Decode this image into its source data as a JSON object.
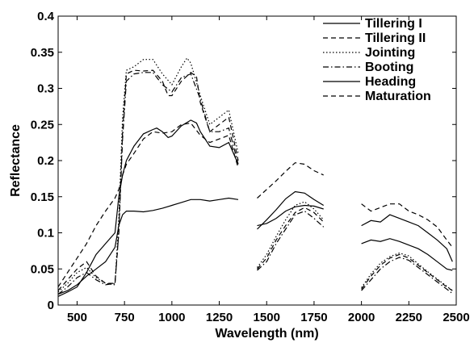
{
  "chart_data": {
    "type": "line",
    "title": "",
    "xlabel": "Wavelength (nm)",
    "ylabel": "Reflectance",
    "xlim": [
      400,
      2500
    ],
    "ylim": [
      0,
      0.4
    ],
    "xticks": [
      500,
      750,
      1000,
      1250,
      1500,
      1750,
      2000,
      2250,
      2500
    ],
    "xtick_labels": [
      "500",
      "750",
      "1000",
      "1250",
      "1500",
      "1750",
      "2000",
      "2250",
      "2500"
    ],
    "yticks": [
      0,
      0.05,
      0.1,
      0.15,
      0.2,
      0.25,
      0.3,
      0.35,
      0.4
    ],
    "ytick_labels": [
      "0",
      "0.05",
      "0.1",
      "0.15",
      "0.2",
      "0.25",
      "0.3",
      "0.35",
      "0.4"
    ],
    "grid": false,
    "legend_position": "top-right",
    "series": [
      {
        "name": "Tillering I",
        "dash": "solid",
        "segments": [
          [
            [
              400,
              0.015
            ],
            [
              450,
              0.02
            ],
            [
              500,
              0.028
            ],
            [
              550,
              0.04
            ],
            [
              600,
              0.05
            ],
            [
              650,
              0.06
            ],
            [
              700,
              0.08
            ],
            [
              720,
              0.11
            ],
            [
              740,
              0.125
            ],
            [
              760,
              0.13
            ],
            [
              800,
              0.13
            ],
            [
              850,
              0.129
            ],
            [
              900,
              0.131
            ],
            [
              950,
              0.134
            ],
            [
              1000,
              0.138
            ],
            [
              1050,
              0.142
            ],
            [
              1100,
              0.146
            ],
            [
              1150,
              0.146
            ],
            [
              1200,
              0.144
            ],
            [
              1250,
              0.146
            ],
            [
              1300,
              0.148
            ],
            [
              1350,
              0.146
            ]
          ],
          [
            [
              1450,
              0.11
            ],
            [
              1500,
              0.113
            ],
            [
              1550,
              0.12
            ],
            [
              1600,
              0.13
            ],
            [
              1650,
              0.136
            ],
            [
              1700,
              0.138
            ],
            [
              1750,
              0.137
            ],
            [
              1800,
              0.133
            ]
          ],
          [
            [
              2000,
              0.085
            ],
            [
              2050,
              0.09
            ],
            [
              2100,
              0.088
            ],
            [
              2150,
              0.092
            ],
            [
              2200,
              0.088
            ],
            [
              2250,
              0.083
            ],
            [
              2300,
              0.078
            ],
            [
              2350,
              0.07
            ],
            [
              2400,
              0.06
            ],
            [
              2450,
              0.05
            ],
            [
              2480,
              0.048
            ]
          ]
        ]
      },
      {
        "name": "Tillering II",
        "dash": "dashed",
        "segments": [
          [
            [
              400,
              0.02
            ],
            [
              450,
              0.035
            ],
            [
              500,
              0.05
            ],
            [
              550,
              0.06
            ],
            [
              600,
              0.04
            ],
            [
              650,
              0.03
            ],
            [
              700,
              0.03
            ],
            [
              720,
              0.1
            ],
            [
              740,
              0.24
            ],
            [
              760,
              0.32
            ],
            [
              800,
              0.325
            ],
            [
              850,
              0.324
            ],
            [
              900,
              0.325
            ],
            [
              950,
              0.31
            ],
            [
              980,
              0.29
            ],
            [
              1000,
              0.29
            ],
            [
              1050,
              0.31
            ],
            [
              1100,
              0.322
            ],
            [
              1130,
              0.316
            ],
            [
              1150,
              0.28
            ],
            [
              1200,
              0.24
            ],
            [
              1250,
              0.25
            ],
            [
              1300,
              0.26
            ],
            [
              1350,
              0.2
            ]
          ],
          [
            [
              1450,
              0.05
            ],
            [
              1500,
              0.065
            ],
            [
              1550,
              0.09
            ],
            [
              1600,
              0.11
            ],
            [
              1650,
              0.128
            ],
            [
              1700,
              0.135
            ],
            [
              1750,
              0.128
            ],
            [
              1800,
              0.115
            ]
          ],
          [
            [
              2000,
              0.022
            ],
            [
              2050,
              0.04
            ],
            [
              2100,
              0.055
            ],
            [
              2150,
              0.065
            ],
            [
              2200,
              0.07
            ],
            [
              2250,
              0.065
            ],
            [
              2300,
              0.055
            ],
            [
              2350,
              0.045
            ],
            [
              2400,
              0.035
            ],
            [
              2450,
              0.025
            ],
            [
              2480,
              0.02
            ]
          ]
        ]
      },
      {
        "name": "Jointing",
        "dash": "dotted",
        "segments": [
          [
            [
              400,
              0.018
            ],
            [
              450,
              0.03
            ],
            [
              500,
              0.045
            ],
            [
              550,
              0.052
            ],
            [
              600,
              0.038
            ],
            [
              650,
              0.03
            ],
            [
              700,
              0.028
            ],
            [
              720,
              0.12
            ],
            [
              740,
              0.26
            ],
            [
              760,
              0.325
            ],
            [
              800,
              0.33
            ],
            [
              850,
              0.34
            ],
            [
              900,
              0.34
            ],
            [
              950,
              0.32
            ],
            [
              1000,
              0.305
            ],
            [
              1050,
              0.33
            ],
            [
              1080,
              0.342
            ],
            [
              1100,
              0.335
            ],
            [
              1150,
              0.29
            ],
            [
              1200,
              0.25
            ],
            [
              1250,
              0.26
            ],
            [
              1300,
              0.27
            ],
            [
              1350,
              0.21
            ]
          ],
          [
            [
              1450,
              0.052
            ],
            [
              1500,
              0.07
            ],
            [
              1550,
              0.095
            ],
            [
              1600,
              0.118
            ],
            [
              1650,
              0.138
            ],
            [
              1700,
              0.143
            ],
            [
              1750,
              0.133
            ],
            [
              1800,
              0.118
            ]
          ],
          [
            [
              2000,
              0.024
            ],
            [
              2050,
              0.043
            ],
            [
              2100,
              0.058
            ],
            [
              2150,
              0.067
            ],
            [
              2200,
              0.072
            ],
            [
              2250,
              0.068
            ],
            [
              2300,
              0.057
            ],
            [
              2350,
              0.046
            ],
            [
              2400,
              0.036
            ],
            [
              2450,
              0.026
            ],
            [
              2480,
              0.02
            ]
          ]
        ]
      },
      {
        "name": "Booting",
        "dash": "dashdot",
        "segments": [
          [
            [
              400,
              0.015
            ],
            [
              450,
              0.025
            ],
            [
              500,
              0.038
            ],
            [
              550,
              0.045
            ],
            [
              600,
              0.035
            ],
            [
              650,
              0.028
            ],
            [
              700,
              0.03
            ],
            [
              720,
              0.1
            ],
            [
              740,
              0.23
            ],
            [
              760,
              0.31
            ],
            [
              800,
              0.32
            ],
            [
              850,
              0.322
            ],
            [
              900,
              0.322
            ],
            [
              950,
              0.305
            ],
            [
              1000,
              0.295
            ],
            [
              1050,
              0.315
            ],
            [
              1100,
              0.32
            ],
            [
              1150,
              0.285
            ],
            [
              1200,
              0.24
            ],
            [
              1250,
              0.24
            ],
            [
              1300,
              0.245
            ],
            [
              1350,
              0.195
            ]
          ],
          [
            [
              1450,
              0.048
            ],
            [
              1500,
              0.06
            ],
            [
              1550,
              0.085
            ],
            [
              1600,
              0.105
            ],
            [
              1650,
              0.125
            ],
            [
              1700,
              0.13
            ],
            [
              1750,
              0.12
            ],
            [
              1800,
              0.108
            ]
          ],
          [
            [
              2000,
              0.02
            ],
            [
              2050,
              0.035
            ],
            [
              2100,
              0.05
            ],
            [
              2150,
              0.06
            ],
            [
              2200,
              0.066
            ],
            [
              2250,
              0.062
            ],
            [
              2300,
              0.052
            ],
            [
              2350,
              0.042
            ],
            [
              2400,
              0.032
            ],
            [
              2450,
              0.022
            ],
            [
              2480,
              0.016
            ]
          ]
        ]
      },
      {
        "name": "Heading",
        "dash": "solid",
        "segments": [
          [
            [
              400,
              0.012
            ],
            [
              450,
              0.018
            ],
            [
              500,
              0.025
            ],
            [
              550,
              0.045
            ],
            [
              600,
              0.07
            ],
            [
              650,
              0.085
            ],
            [
              700,
              0.1
            ],
            [
              720,
              0.15
            ],
            [
              740,
              0.18
            ],
            [
              760,
              0.2
            ],
            [
              800,
              0.22
            ],
            [
              850,
              0.237
            ],
            [
              900,
              0.243
            ],
            [
              920,
              0.245
            ],
            [
              950,
              0.24
            ],
            [
              980,
              0.232
            ],
            [
              1000,
              0.234
            ],
            [
              1050,
              0.248
            ],
            [
              1100,
              0.256
            ],
            [
              1130,
              0.252
            ],
            [
              1150,
              0.24
            ],
            [
              1200,
              0.22
            ],
            [
              1250,
              0.218
            ],
            [
              1300,
              0.225
            ],
            [
              1350,
              0.195
            ]
          ],
          [
            [
              1450,
              0.105
            ],
            [
              1500,
              0.118
            ],
            [
              1550,
              0.132
            ],
            [
              1600,
              0.147
            ],
            [
              1650,
              0.157
            ],
            [
              1700,
              0.155
            ],
            [
              1750,
              0.146
            ],
            [
              1800,
              0.138
            ]
          ],
          [
            [
              2000,
              0.11
            ],
            [
              2050,
              0.117
            ],
            [
              2100,
              0.115
            ],
            [
              2150,
              0.125
            ],
            [
              2200,
              0.12
            ],
            [
              2250,
              0.115
            ],
            [
              2300,
              0.11
            ],
            [
              2350,
              0.1
            ],
            [
              2400,
              0.09
            ],
            [
              2450,
              0.078
            ],
            [
              2480,
              0.06
            ]
          ]
        ]
      },
      {
        "name": "Maturation",
        "dash": "dashed",
        "segments": [
          [
            [
              400,
              0.025
            ],
            [
              450,
              0.045
            ],
            [
              500,
              0.065
            ],
            [
              550,
              0.085
            ],
            [
              600,
              0.11
            ],
            [
              650,
              0.13
            ],
            [
              700,
              0.148
            ],
            [
              720,
              0.16
            ],
            [
              740,
              0.18
            ],
            [
              760,
              0.195
            ],
            [
              800,
              0.21
            ],
            [
              850,
              0.23
            ],
            [
              900,
              0.24
            ],
            [
              950,
              0.238
            ],
            [
              1000,
              0.24
            ],
            [
              1050,
              0.25
            ],
            [
              1100,
              0.252
            ],
            [
              1150,
              0.235
            ],
            [
              1200,
              0.225
            ],
            [
              1250,
              0.23
            ],
            [
              1300,
              0.235
            ],
            [
              1350,
              0.19
            ]
          ],
          [
            [
              1450,
              0.148
            ],
            [
              1500,
              0.16
            ],
            [
              1550,
              0.172
            ],
            [
              1600,
              0.185
            ],
            [
              1650,
              0.197
            ],
            [
              1700,
              0.195
            ],
            [
              1750,
              0.186
            ],
            [
              1800,
              0.18
            ]
          ],
          [
            [
              2000,
              0.14
            ],
            [
              2050,
              0.13
            ],
            [
              2100,
              0.135
            ],
            [
              2150,
              0.14
            ],
            [
              2200,
              0.14
            ],
            [
              2250,
              0.13
            ],
            [
              2300,
              0.125
            ],
            [
              2350,
              0.118
            ],
            [
              2400,
              0.108
            ],
            [
              2450,
              0.09
            ],
            [
              2480,
              0.08
            ]
          ]
        ]
      }
    ]
  }
}
